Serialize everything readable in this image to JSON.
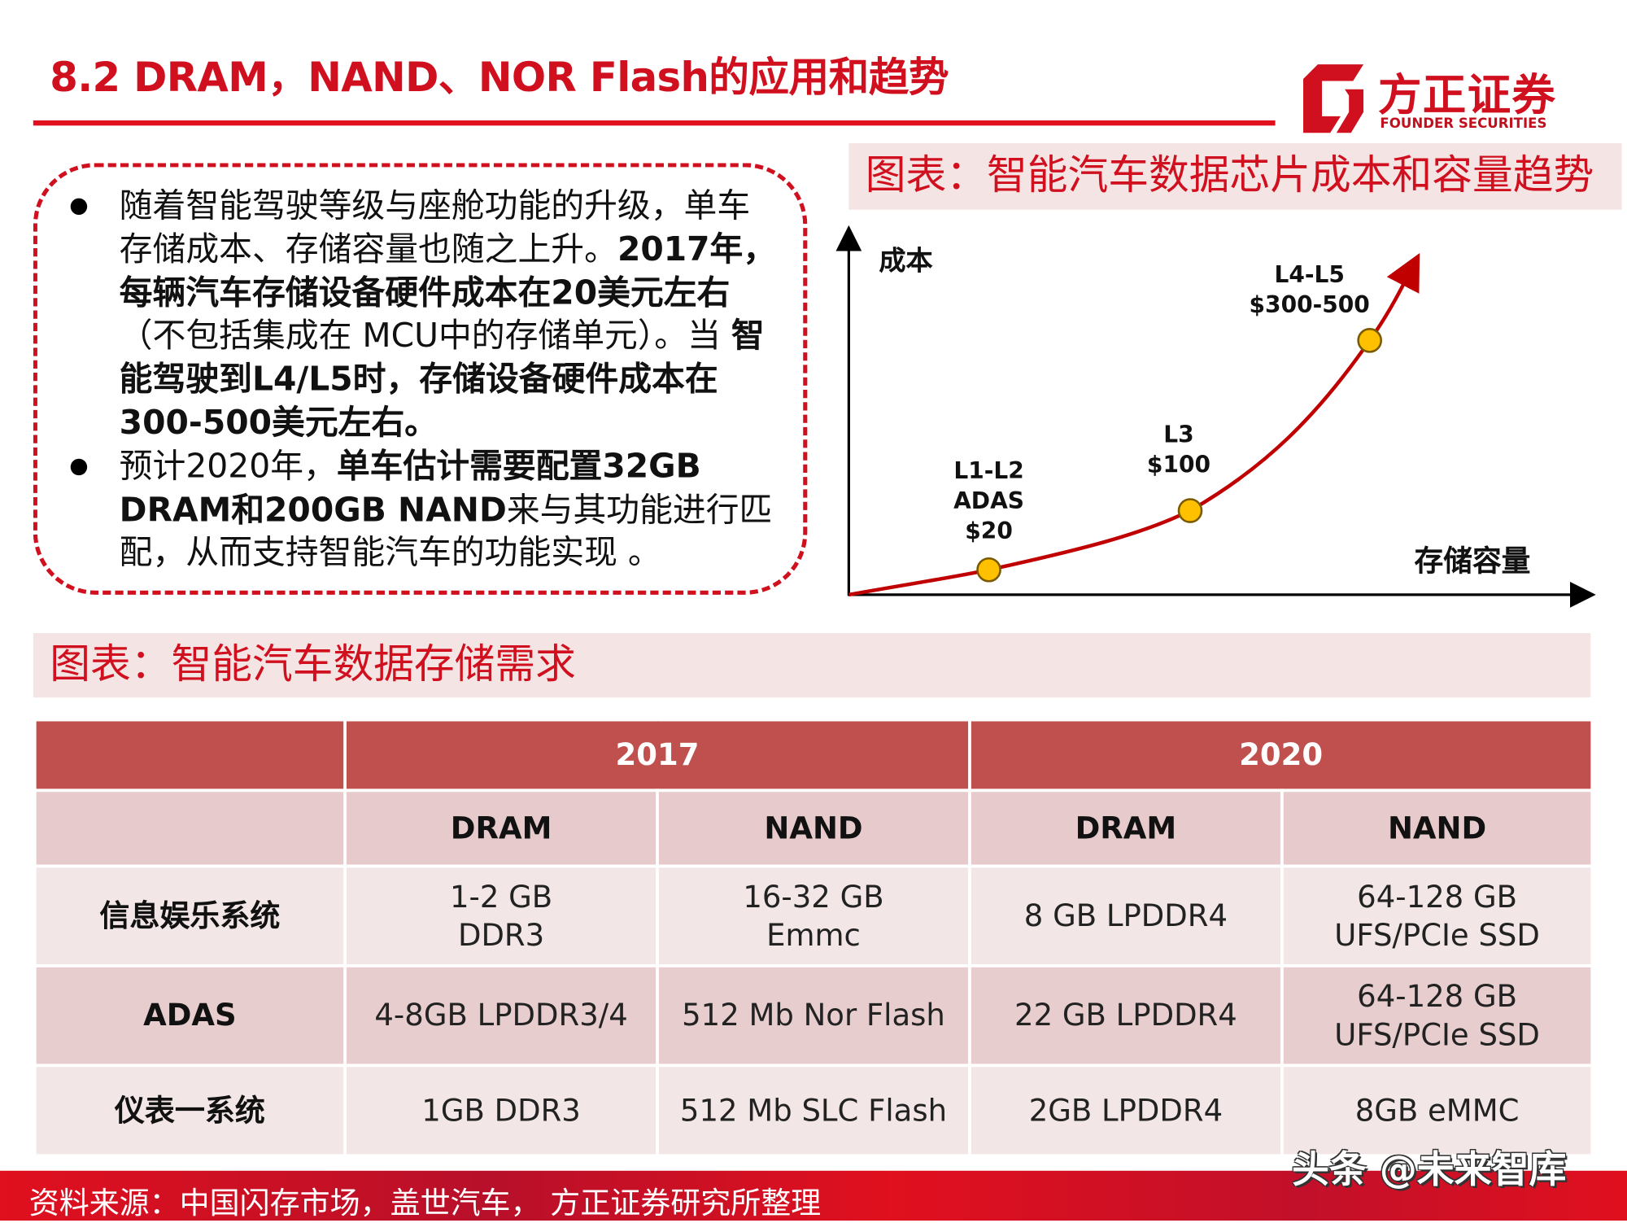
{
  "header": {
    "title": "8.2 DRAM，NAND、NOR Flash的应用和趋势"
  },
  "logo": {
    "cn": "方正证券",
    "en": "FOUNDER SECURITIES"
  },
  "bullets": [
    {
      "segments": [
        {
          "text": "随着智能驾驶等级与座舱功能的升级，单车存储成本、存储容量也随之上升。",
          "bold": false
        },
        {
          "text": "2017年，每辆汽车存储设备硬件成本在20美元左右",
          "bold": true
        },
        {
          "text": "（不包括集成在 MCU中的存储单元）。当 ",
          "bold": false
        },
        {
          "text": "智能驾驶到L4/L5时，存储设备硬件成本在300-500美元左右。",
          "bold": true
        }
      ]
    },
    {
      "segments": [
        {
          "text": "预计2020年，",
          "bold": false
        },
        {
          "text": "单车估计需要配置32GB DRAM和200GB NAND",
          "bold": true
        },
        {
          "text": "来与其功能进行匹配，从而支持智能汽车的功能实现 。",
          "bold": false
        }
      ]
    }
  ],
  "chart_panel": {
    "title": "图表：智能汽车数据芯片成本和容量趋势"
  },
  "chart_data": {
    "type": "line",
    "xlabel": "存储容量",
    "ylabel": "成本",
    "points": [
      {
        "label": [
          "L1-L2",
          "ADAS",
          "$20"
        ]
      },
      {
        "label": [
          "L3",
          "$100"
        ]
      },
      {
        "label": [
          "L4-L5",
          "$300-500"
        ]
      }
    ],
    "line_color": "#c00000",
    "point_color": "#ffc000"
  },
  "table_panel": {
    "title": "图表：智能汽车数据存储需求"
  },
  "table": {
    "years": [
      "2017",
      "2020"
    ],
    "columns": [
      "DRAM",
      "NAND",
      "DRAM",
      "NAND"
    ],
    "rows": [
      {
        "name": "信息娱乐系统",
        "cells": [
          [
            "1-2 GB",
            "DDR3"
          ],
          [
            "16-32 GB",
            "Emmc"
          ],
          [
            "8 GB LPDDR4"
          ],
          [
            "64-128 GB",
            "UFS/PCIe SSD"
          ]
        ]
      },
      {
        "name": "ADAS",
        "cells": [
          [
            "4-8GB LPDDR3/4"
          ],
          [
            "512 Mb Nor Flash"
          ],
          [
            "22 GB LPDDR4"
          ],
          [
            "64-128 GB",
            "UFS/PCIe SSD"
          ]
        ]
      },
      {
        "name": "仪表一系统",
        "cells": [
          [
            "1GB DDR3"
          ],
          [
            "512 Mb SLC Flash"
          ],
          [
            "2GB LPDDR4"
          ],
          [
            "8GB eMMC"
          ]
        ]
      }
    ]
  },
  "footer": {
    "source": "资料来源：中国闪存市场，盖世汽车， 方正证券研究所整理",
    "watermark": "头条 @未来智库"
  },
  "colors": {
    "brand_red": "#d0101e",
    "table_header": "#c0504d"
  }
}
